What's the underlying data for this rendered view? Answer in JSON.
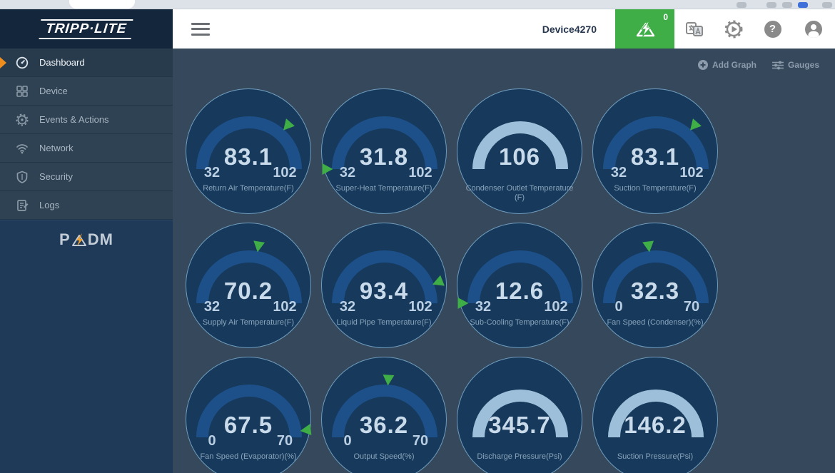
{
  "header": {
    "brand": "TRIPP·LITE",
    "device_name": "Device4270",
    "alarm_count": "0"
  },
  "sidebar": {
    "items": [
      {
        "label": "Dashboard",
        "icon": "dashboard-icon",
        "active": true
      },
      {
        "label": "Device",
        "icon": "device-icon",
        "active": false
      },
      {
        "label": "Events & Actions",
        "icon": "events-icon",
        "active": false
      },
      {
        "label": "Network",
        "icon": "network-icon",
        "active": false
      },
      {
        "label": "Security",
        "icon": "security-icon",
        "active": false
      },
      {
        "label": "Logs",
        "icon": "logs-icon",
        "active": false
      }
    ],
    "logo_prefix": "P",
    "logo_suffix": "DM"
  },
  "content": {
    "add_graph_label": "Add Graph",
    "gauges_button_label": "Gauges",
    "gauges": [
      {
        "value": "83.1",
        "min": "32",
        "max": "102",
        "label": "Return Air Temperature(F)",
        "style": "blue",
        "marker_pct": 0.73
      },
      {
        "value": "31.8",
        "min": "32",
        "max": "102",
        "label": "Super-Heat Temperature(F)",
        "style": "blue",
        "marker_pct": 0.0
      },
      {
        "value": "106",
        "min": null,
        "max": null,
        "label": "Condenser Outlet Temperature (F)",
        "style": "light",
        "marker_pct": null
      },
      {
        "value": "83.1",
        "min": "32",
        "max": "102",
        "label": "Suction Temperature(F)",
        "style": "blue",
        "marker_pct": 0.73
      },
      {
        "value": "70.2",
        "min": "32",
        "max": "102",
        "label": "Supply Air Temperature(F)",
        "style": "blue",
        "marker_pct": 0.55
      },
      {
        "value": "93.4",
        "min": "32",
        "max": "102",
        "label": "Liquid Pipe Temperature(F)",
        "style": "blue",
        "marker_pct": 0.88
      },
      {
        "value": "12.6",
        "min": "32",
        "max": "102",
        "label": "Sub-Cooling Temperature(F)",
        "style": "blue",
        "marker_pct": 0.0
      },
      {
        "value": "32.3",
        "min": "0",
        "max": "70",
        "label": "Fan Speed (Condenser)(%)",
        "style": "blue",
        "marker_pct": 0.46
      },
      {
        "value": "67.5",
        "min": "0",
        "max": "70",
        "label": "Fan Speed (Evaporator)(%)",
        "style": "blue",
        "marker_pct": 0.96
      },
      {
        "value": "36.2",
        "min": "0",
        "max": "70",
        "label": "Output Speed(%)",
        "style": "blue",
        "marker_pct": 0.52
      },
      {
        "value": "345.7",
        "min": null,
        "max": null,
        "label": "Discharge Pressure(Psi)",
        "style": "light",
        "marker_pct": null
      },
      {
        "value": "146.2",
        "min": null,
        "max": null,
        "label": "Suction Pressure(Psi)",
        "style": "light",
        "marker_pct": null
      }
    ]
  },
  "colors": {
    "accent_green": "#3fae47",
    "accent_orange": "#ef8e1e",
    "arc_blue": "#1d5089",
    "arc_light": "#9dbfda"
  }
}
